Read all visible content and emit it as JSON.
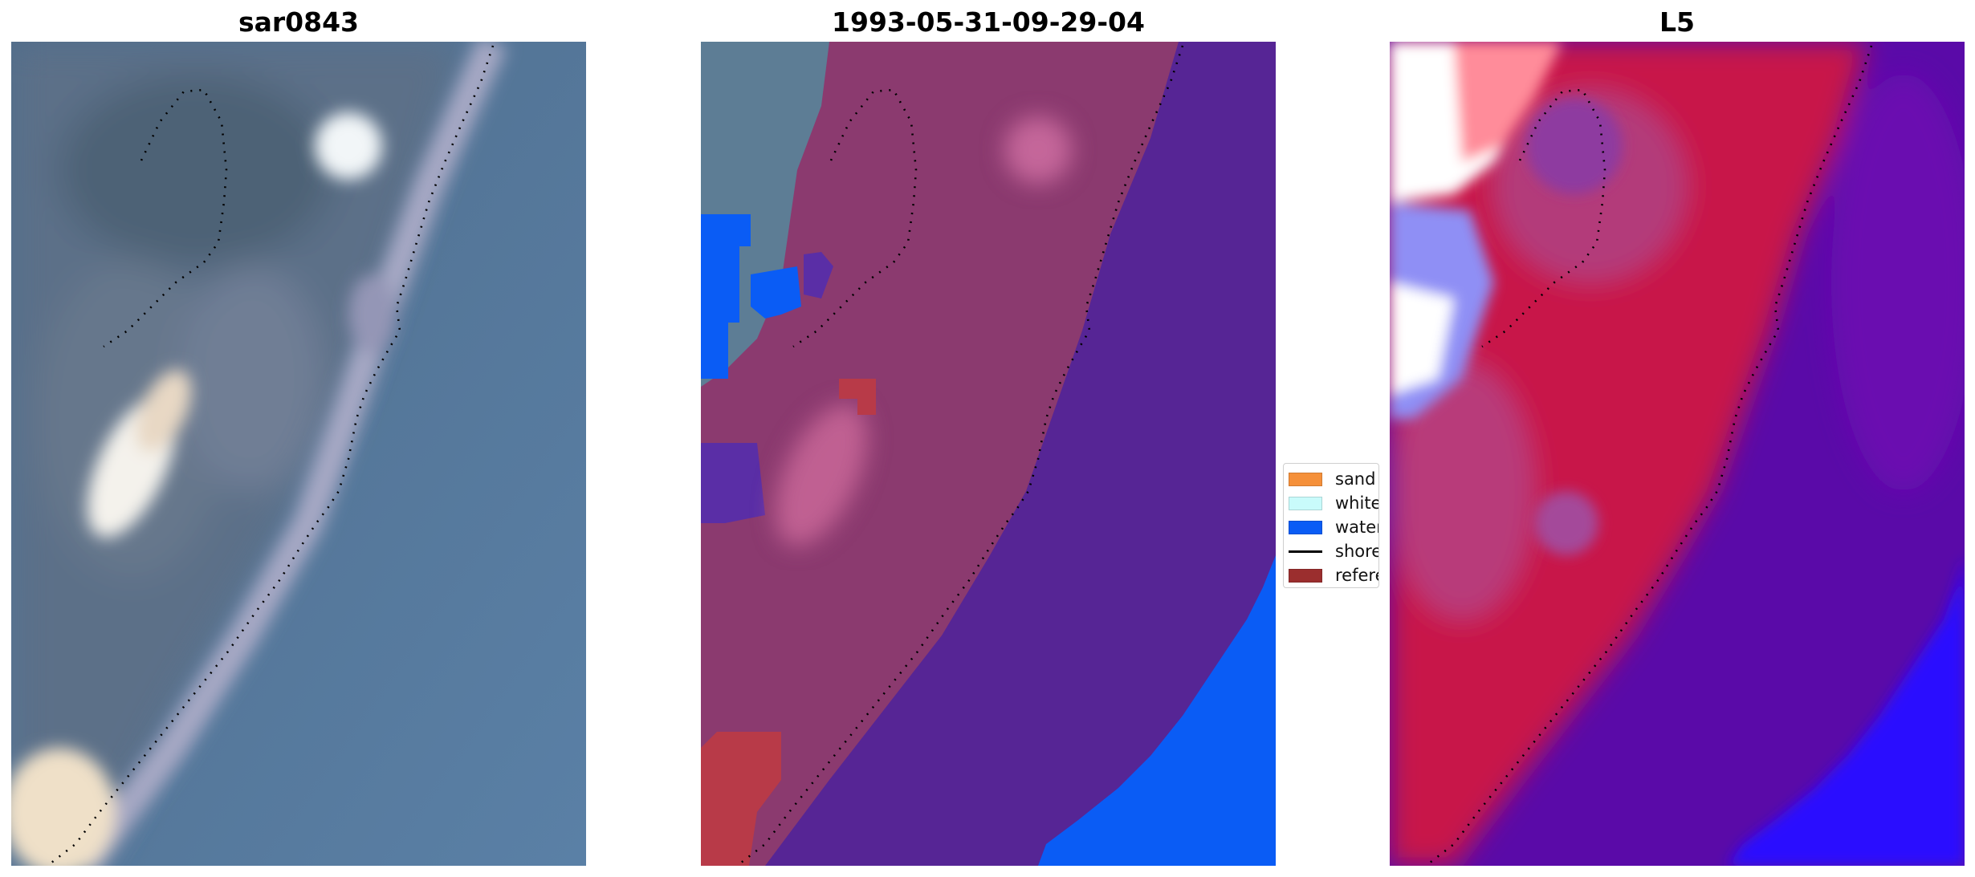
{
  "panels": [
    {
      "title": "sar0843"
    },
    {
      "title": "1993-05-31-09-29-04"
    },
    {
      "title": "L5"
    }
  ],
  "legend": {
    "items": [
      {
        "label": "sand",
        "color": "#f5903a",
        "kind": "patch"
      },
      {
        "label": "whitewater",
        "color": "#c9fbfb",
        "kind": "patch"
      },
      {
        "label": "water",
        "color": "#0a5cf5",
        "kind": "patch"
      },
      {
        "label": "shoreline",
        "color": "#000000",
        "kind": "line"
      },
      {
        "label": "reference",
        "color": "#9b2e2e",
        "kind": "patch"
      }
    ]
  },
  "colors": {
    "ocean": "#5b7fa3",
    "land_class": "#8b3a6f",
    "sea_class": "#562595",
    "water_class": "#0a5cf5",
    "l5_land": "#c8184a",
    "l5_sea": "#5a0aa8",
    "l5_water": "#2a10ff"
  }
}
